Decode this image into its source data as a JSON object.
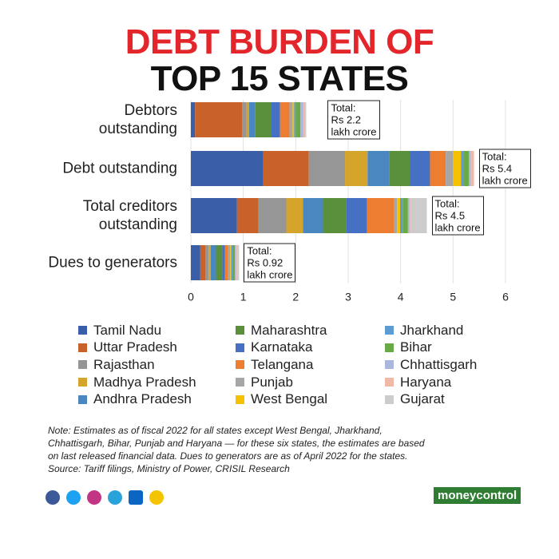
{
  "chart_data": {
    "type": "bar",
    "orientation": "horizontal",
    "stacked": true,
    "title_lines": [
      "DEBT BURDEN OF",
      "TOP 15 STATES"
    ],
    "categories": [
      "Debtors\noutstanding",
      "Debt outstanding",
      "Total creditors\noutstanding",
      "Dues to generators"
    ],
    "series": [
      {
        "name": "Tamil Nadu",
        "color": "#3a5ea8",
        "values": [
          0.08,
          1.38,
          0.88,
          0.18
        ]
      },
      {
        "name": "Uttar Pradesh",
        "color": "#c8612a",
        "values": [
          0.9,
          0.87,
          0.41,
          0.1
        ]
      },
      {
        "name": "Rajasthan",
        "color": "#969696",
        "values": [
          0.08,
          0.69,
          0.53,
          0.06
        ]
      },
      {
        "name": "Madhya Pradesh",
        "color": "#d4a52a",
        "values": [
          0.05,
          0.43,
          0.32,
          0.04
        ]
      },
      {
        "name": "Andhra Pradesh",
        "color": "#4a86c0",
        "values": [
          0.12,
          0.41,
          0.38,
          0.1
        ]
      },
      {
        "name": "Maharashtra",
        "color": "#5a8f3c",
        "values": [
          0.3,
          0.4,
          0.44,
          0.12
        ]
      },
      {
        "name": "Karnataka",
        "color": "#4670c4",
        "values": [
          0.17,
          0.38,
          0.4,
          0.05
        ]
      },
      {
        "name": "Telangana",
        "color": "#ec7d31",
        "values": [
          0.18,
          0.3,
          0.52,
          0.06
        ]
      },
      {
        "name": "Punjab",
        "color": "#a6a6a6",
        "values": [
          0.06,
          0.14,
          0.05,
          0.04
        ]
      },
      {
        "name": "West Bengal",
        "color": "#f5c000",
        "values": [
          0.03,
          0.15,
          0.06,
          0.02
        ]
      },
      {
        "name": "Jharkhand",
        "color": "#5d9bd3",
        "values": [
          0.03,
          0.05,
          0.05,
          0.03
        ]
      },
      {
        "name": "Bihar",
        "color": "#6aaa46",
        "values": [
          0.09,
          0.1,
          0.1,
          0.04
        ]
      },
      {
        "name": "Chhattisgarh",
        "color": "#aab6dc",
        "values": [
          0.05,
          0.03,
          0.03,
          0.02
        ]
      },
      {
        "name": "Haryana",
        "color": "#f0b8a6",
        "values": [
          0.03,
          0.06,
          0.03,
          0.02
        ]
      },
      {
        "name": "Gujarat",
        "color": "#cccccc",
        "values": [
          0.03,
          0.01,
          0.3,
          0.04
        ]
      }
    ],
    "annotations": [
      [
        "Total:",
        "Rs 2.2",
        "lakh crore"
      ],
      [
        "Total:",
        "Rs 5.4",
        "lakh crore"
      ],
      [
        "Total:",
        "Rs 4.5",
        "lakh crore"
      ],
      [
        "Total:",
        "Rs 0.92",
        "lakh crore"
      ]
    ],
    "xlim": [
      0,
      6
    ],
    "xticks": [
      0,
      1,
      2,
      3,
      4,
      5,
      6
    ],
    "grid": true
  },
  "note_lines": [
    "Note: Estimates as of fiscal 2022 for all states except West Bengal, Jharkhand,",
    "Chhattisgarh, Bihar, Punjab and Haryana — for these six states, the estimates are based",
    "on last released financial data. Dues to generators are as of April 2022 for the states.",
    "Source: Tariff filings, Ministry of Power, CRISIL Research"
  ],
  "brand": "moneycontrol"
}
